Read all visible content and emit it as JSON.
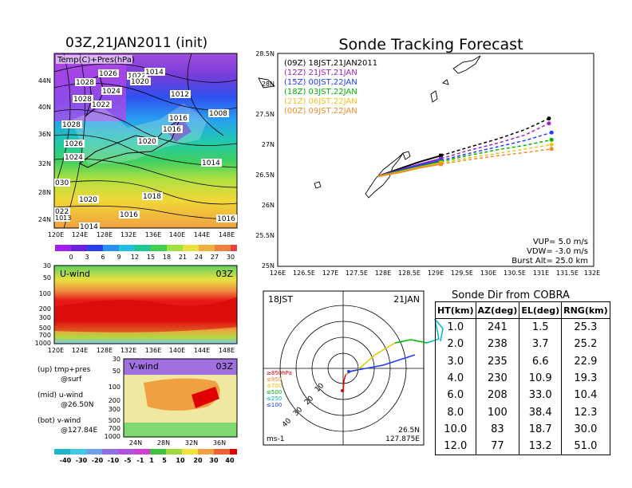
{
  "left_top": {
    "title": "03Z,21JAN2011 (init)",
    "inner_label": "Temp(C)+Pres(hPa)",
    "lon_ticks": [
      "120E",
      "124E",
      "128E",
      "132E",
      "136E",
      "140E",
      "144E",
      "148E"
    ],
    "lat_ticks": [
      "44N",
      "40N",
      "36N",
      "32N",
      "28N",
      "24N"
    ],
    "pressure_labels": [
      "1026",
      "1022",
      "1020",
      "1014",
      "1028",
      "1024",
      "1028",
      "1022",
      "1012",
      "1008",
      "1016",
      "1016",
      "1028",
      "1026",
      "1020",
      "1024",
      "1014",
      "030",
      "1020",
      "1018",
      "022",
      "1016",
      "1016",
      "1014",
      "1013"
    ],
    "colorbar_ticks": [
      "0",
      "3",
      "6",
      "9",
      "12",
      "15",
      "18",
      "21",
      "24",
      "27",
      "30"
    ]
  },
  "left_mid": {
    "label": "U-wind",
    "time": "03Z",
    "y_ticks": [
      "30",
      "50",
      "100",
      "200",
      "300",
      "500",
      "700",
      "1000"
    ],
    "x_ticks": [
      "120E",
      "124E",
      "128E",
      "132E",
      "136E",
      "140E",
      "144E",
      "148E"
    ]
  },
  "left_bottom": {
    "label": "V-wind",
    "time": "03Z",
    "y_ticks": [
      "30",
      "50",
      "100",
      "200",
      "300",
      "500",
      "700",
      "1000"
    ],
    "x_ticks": [
      "24N",
      "28N",
      "32N",
      "36N"
    ],
    "colorbar_ticks": [
      "-40",
      "-30",
      "-20",
      "-10",
      "-5",
      "-1",
      "1",
      "5",
      "10",
      "20",
      "30",
      "40"
    ]
  },
  "side_notes": {
    "line1": "(up) tmp+pres",
    "line2": "@surf",
    "line3": "(mid) u-wind",
    "line4": "@26.50N",
    "line5": "(bot) v-wind",
    "line6": "@127.84E"
  },
  "tracking": {
    "title": "Sonde Tracking Forecast",
    "legend": [
      {
        "text": "(09Z)  18JST,21JAN2011",
        "color": "#000000"
      },
      {
        "text": "(12Z)  21JST,21JAN",
        "color": "#a020c0"
      },
      {
        "text": "(15Z)  00JST,22JAN",
        "color": "#1e3cff"
      },
      {
        "text": "(18Z)  03JST,22JAN",
        "color": "#00b400"
      },
      {
        "text": "(21Z)  06JST,22JAN",
        "color": "#f0c020"
      },
      {
        "text": "(00Z)  09JST,22JAN",
        "color": "#f08c28"
      }
    ],
    "vup": "VUP=  5.0  m/s",
    "vdw": "VDW= -3.0  m/s",
    "burst": "Burst Alt=  25.0  km",
    "x_ticks": [
      "126E",
      "126.5E",
      "127E",
      "127.5E",
      "128E",
      "128.5E",
      "129E",
      "129.5E",
      "130E",
      "130.5E",
      "131E",
      "131.5E",
      "132E"
    ],
    "y_ticks": [
      "28.5N",
      "28N",
      "27.5N",
      "27N",
      "26.5N",
      "26N",
      "25.5N",
      "25N"
    ]
  },
  "chart_data": {
    "type": "line",
    "title": "Sonde Tracking Forecast",
    "xlim": [
      126,
      132
    ],
    "ylim": [
      25,
      28.5
    ],
    "series": [
      {
        "name": "(09Z)  18JST,21JAN2011",
        "x": [
          127.9,
          128.3,
          128.7,
          129.1,
          129.6,
          130.2,
          130.7,
          131.15
        ],
        "y": [
          26.48,
          26.6,
          26.72,
          26.82,
          26.95,
          27.1,
          27.25,
          27.43
        ]
      },
      {
        "name": "(12Z)  21JST,21JAN",
        "x": [
          127.9,
          128.3,
          128.7,
          129.1,
          129.6,
          130.2,
          130.7,
          131.15
        ],
        "y": [
          26.48,
          26.58,
          26.68,
          26.77,
          26.9,
          27.03,
          27.16,
          27.35
        ]
      },
      {
        "name": "(15Z)  00JST,22JAN",
        "x": [
          127.9,
          128.3,
          128.7,
          129.1,
          129.6,
          130.2,
          130.7,
          131.2
        ],
        "y": [
          26.48,
          26.57,
          26.66,
          26.74,
          26.85,
          26.97,
          27.07,
          27.2
        ]
      },
      {
        "name": "(18Z)  03JST,22JAN",
        "x": [
          127.9,
          128.3,
          128.7,
          129.1,
          129.6,
          130.2,
          130.7,
          131.2
        ],
        "y": [
          26.48,
          26.56,
          26.64,
          26.72,
          26.82,
          26.92,
          26.99,
          27.08
        ]
      },
      {
        "name": "(21Z)  06JST,22JAN",
        "x": [
          127.9,
          128.3,
          128.7,
          129.1,
          129.6,
          130.2,
          130.7,
          131.2
        ],
        "y": [
          26.48,
          26.55,
          26.63,
          26.7,
          26.78,
          26.86,
          26.93,
          27.0
        ]
      },
      {
        "name": "(00Z)  09JST,22JAN",
        "x": [
          127.9,
          128.3,
          128.7,
          129.1,
          129.6,
          130.2,
          130.7,
          131.2
        ],
        "y": [
          26.48,
          26.54,
          26.62,
          26.68,
          26.75,
          26.82,
          26.87,
          26.93
        ]
      }
    ]
  },
  "hodograph": {
    "time": "18JST",
    "date": "21JAN",
    "lat": "26.5N",
    "lon": "127.875E",
    "unit": "ms-1",
    "ring_labels": [
      "10",
      "20",
      "30",
      "40"
    ],
    "legend": [
      {
        "text": "≥850hPa",
        "color": "#e00000"
      },
      {
        "text": "≤850",
        "color": "#f08c28"
      },
      {
        "text": "≤700",
        "color": "#e6c800"
      },
      {
        "text": "≤500",
        "color": "#00b400"
      },
      {
        "text": "≤250",
        "color": "#00b4c8"
      },
      {
        "text": "≤100",
        "color": "#1e3cff"
      }
    ]
  },
  "sonde_table": {
    "title": "Sonde Dir from COBRA",
    "headers": [
      "HT(km)",
      "AZ(deg)",
      "EL(deg)",
      "RNG(km)"
    ],
    "rows": [
      [
        "1.0",
        "241",
        "1.5",
        "25.3"
      ],
      [
        "2.0",
        "238",
        "3.7",
        "25.2"
      ],
      [
        "3.0",
        "235",
        "6.6",
        "22.9"
      ],
      [
        "4.0",
        "230",
        "10.9",
        "19.3"
      ],
      [
        "6.0",
        "208",
        "33.0",
        "10.4"
      ],
      [
        "8.0",
        "100",
        "38.4",
        "12.3"
      ],
      [
        "10.0",
        "83",
        "18.7",
        "30.0"
      ],
      [
        "12.0",
        "77",
        "13.2",
        "51.0"
      ]
    ]
  }
}
